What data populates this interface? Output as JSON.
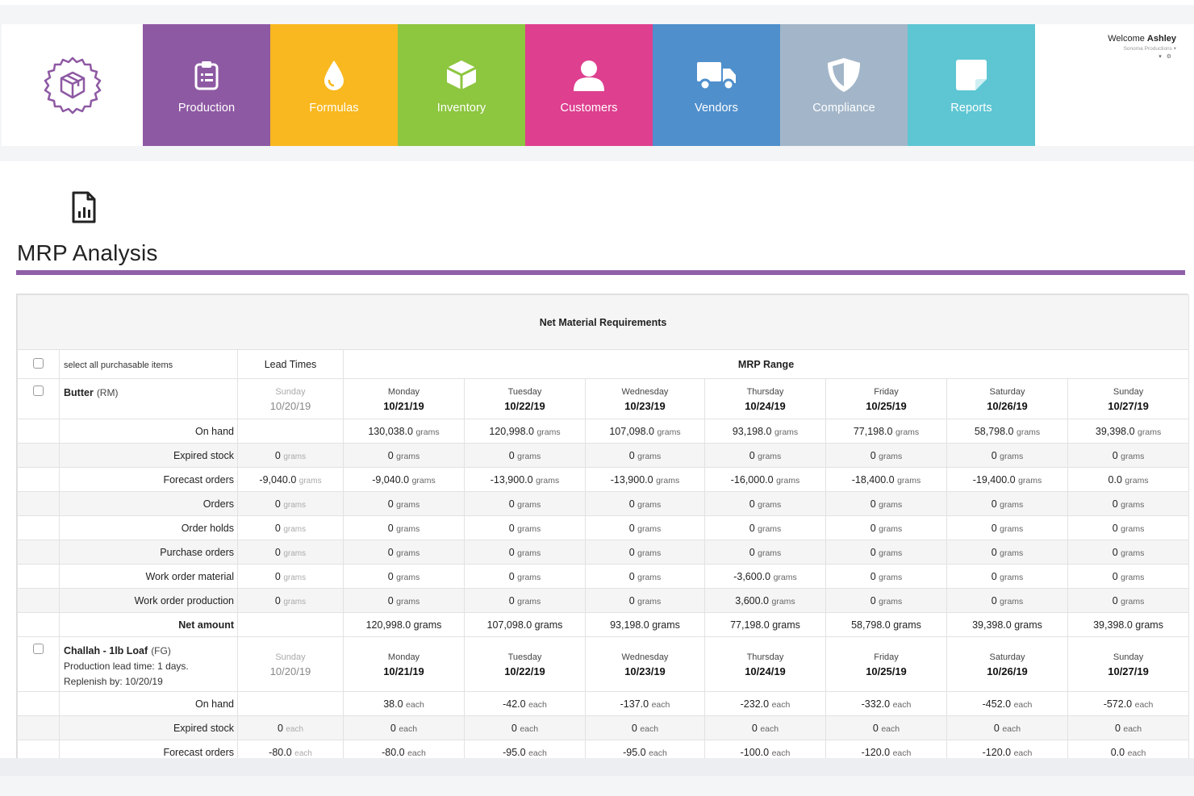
{
  "header": {
    "welcome_prefix": "Welcome",
    "user_name": "Ashley",
    "company": "Sonoma Productions",
    "icons": [
      "user-dropdown-icon",
      "settings-icon"
    ]
  },
  "nav": {
    "tiles": [
      {
        "label": "Production",
        "color": "#8e59a3",
        "icon": "clipboard-icon"
      },
      {
        "label": "Formulas",
        "color": "#f9b81f",
        "icon": "droplet-icon"
      },
      {
        "label": "Inventory",
        "color": "#8dc63f",
        "icon": "box-icon"
      },
      {
        "label": "Customers",
        "color": "#de3f8f",
        "icon": "person-icon"
      },
      {
        "label": "Vendors",
        "color": "#4f8fcc",
        "icon": "truck-icon"
      },
      {
        "label": "Compliance",
        "color": "#a3b6c9",
        "icon": "shield-icon"
      },
      {
        "label": "Reports",
        "color": "#5ec6d3",
        "icon": "note-icon"
      }
    ]
  },
  "colors": {
    "accent": "#8f5fa7",
    "positive": "#6cb33e"
  },
  "page": {
    "title": "MRP Analysis",
    "icon": "report-file-icon"
  },
  "table": {
    "caption": "Net Material Requirements",
    "select_all": "select all purchasable items",
    "lead_times": "Lead Times",
    "mrp_range": "MRP Range",
    "lead_day": {
      "day": "Sunday",
      "date": "10/20/19"
    },
    "days": [
      {
        "day": "Monday",
        "date": "10/21/19"
      },
      {
        "day": "Tuesday",
        "date": "10/22/19"
      },
      {
        "day": "Wednesday",
        "date": "10/23/19"
      },
      {
        "day": "Thursday",
        "date": "10/24/19"
      },
      {
        "day": "Friday",
        "date": "10/25/19"
      },
      {
        "day": "Saturday",
        "date": "10/26/19"
      },
      {
        "day": "Sunday",
        "date": "10/27/19"
      }
    ],
    "items": [
      {
        "name": "Butter",
        "tag": "(RM)",
        "details": [],
        "unit": "grams",
        "rows": [
          {
            "label": "On hand",
            "lead": "",
            "values": [
              "130,038.0",
              "120,998.0",
              "107,098.0",
              "93,198.0",
              "77,198.0",
              "58,798.0",
              "39,398.0"
            ]
          },
          {
            "label": "Expired stock",
            "lead": "0",
            "values": [
              "0",
              "0",
              "0",
              "0",
              "0",
              "0",
              "0"
            ]
          },
          {
            "label": "Forecast orders",
            "lead": "-9,040.0",
            "values": [
              "-9,040.0",
              "-13,900.0",
              "-13,900.0",
              "-16,000.0",
              "-18,400.0",
              "-19,400.0",
              "0.0"
            ]
          },
          {
            "label": "Orders",
            "lead": "0",
            "values": [
              "0",
              "0",
              "0",
              "0",
              "0",
              "0",
              "0"
            ]
          },
          {
            "label": "Order holds",
            "lead": "0",
            "values": [
              "0",
              "0",
              "0",
              "0",
              "0",
              "0",
              "0"
            ]
          },
          {
            "label": "Purchase orders",
            "lead": "0",
            "values": [
              "0",
              "0",
              "0",
              "0",
              "0",
              "0",
              "0"
            ]
          },
          {
            "label": "Work order material",
            "lead": "0",
            "values": [
              "0",
              "0",
              "0",
              "-3,600.0",
              "0",
              "0",
              "0"
            ]
          },
          {
            "label": "Work order production",
            "lead": "0",
            "values": [
              "0",
              "0",
              "0",
              "3,600.0",
              "0",
              "0",
              "0"
            ]
          }
        ],
        "net_label": "Net amount",
        "net_values": [
          "120,998.0 grams",
          "107,098.0 grams",
          "93,198.0 grams",
          "77,198.0 grams",
          "58,798.0 grams",
          "39,398.0 grams",
          "39,398.0 grams"
        ]
      },
      {
        "name": "Challah - 1lb Loaf",
        "tag": "(FG)",
        "details": [
          "Production lead time: 1 days.",
          "Replenish by: 10/20/19"
        ],
        "unit": "each",
        "rows": [
          {
            "label": "On hand",
            "lead": "",
            "values": [
              "38.0",
              "-42.0",
              "-137.0",
              "-232.0",
              "-332.0",
              "-452.0",
              "-572.0"
            ]
          },
          {
            "label": "Expired stock",
            "lead": "0",
            "values": [
              "0",
              "0",
              "0",
              "0",
              "0",
              "0",
              "0"
            ]
          },
          {
            "label": "Forecast orders",
            "lead": "-80.0",
            "values": [
              "-80.0",
              "-95.0",
              "-95.0",
              "-100.0",
              "-120.0",
              "-120.0",
              "0.0"
            ]
          }
        ]
      }
    ]
  }
}
